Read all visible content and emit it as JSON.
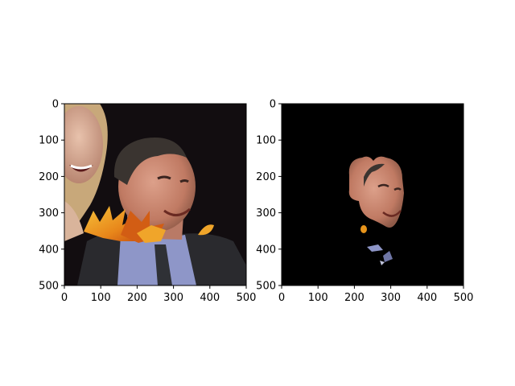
{
  "panels": [
    {
      "id": "original",
      "content": "photo",
      "x_ticks": [
        "0",
        "100",
        "200",
        "300",
        "400",
        "500"
      ],
      "y_ticks": [
        "0",
        "100",
        "200",
        "300",
        "400",
        "500"
      ],
      "xlim": [
        0,
        500
      ],
      "ylim": [
        500,
        0
      ]
    },
    {
      "id": "masked",
      "content": "face-mask",
      "x_ticks": [
        "0",
        "100",
        "200",
        "300",
        "400",
        "500"
      ],
      "y_ticks": [
        "0",
        "100",
        "200",
        "300",
        "400",
        "500"
      ],
      "xlim": [
        0,
        500
      ],
      "ylim": [
        500,
        0
      ]
    }
  ],
  "colors": {
    "background": "#000000",
    "skin": "#c98a73",
    "suit": "#2a2a2e",
    "shirt": "#8e96c8",
    "leaves": "#e7941b"
  }
}
